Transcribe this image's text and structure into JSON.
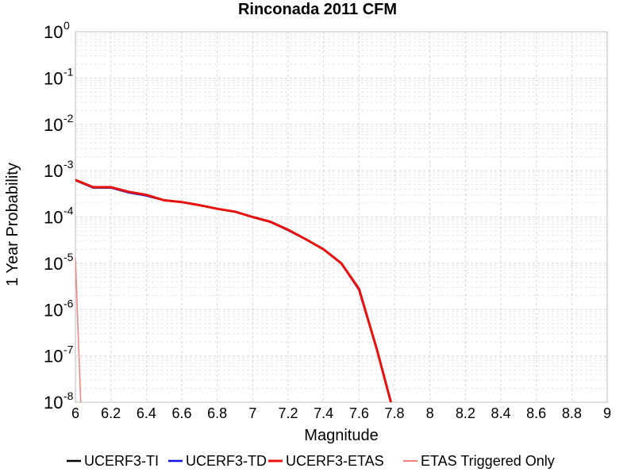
{
  "chart_data": {
    "type": "line",
    "title": "Rinconada 2011 CFM",
    "xlabel": "Magnitude",
    "ylabel": "1 Year Probability",
    "xlim": [
      6,
      9
    ],
    "ylim": [
      1e-08,
      1
    ],
    "yscale": "log",
    "grid": true,
    "legend_position": "bottom",
    "x_ticks": [
      "6",
      "6.2",
      "6.4",
      "6.6",
      "6.8",
      "7",
      "7.2",
      "7.4",
      "7.6",
      "7.8",
      "8",
      "8.2",
      "8.4",
      "8.6",
      "8.8",
      "9"
    ],
    "y_ticks": [
      {
        "base": "10",
        "exp": "0"
      },
      {
        "base": "10",
        "exp": "-1"
      },
      {
        "base": "10",
        "exp": "-2"
      },
      {
        "base": "10",
        "exp": "-3"
      },
      {
        "base": "10",
        "exp": "-4"
      },
      {
        "base": "10",
        "exp": "-5"
      },
      {
        "base": "10",
        "exp": "-6"
      },
      {
        "base": "10",
        "exp": "-7"
      },
      {
        "base": "10",
        "exp": "-8"
      }
    ],
    "series": [
      {
        "name": "UCERF3-TI",
        "color": "#000000",
        "width": 2.5,
        "x": [
          6.0,
          6.1,
          6.2,
          6.3,
          6.4,
          6.5,
          6.6,
          6.7,
          6.8,
          6.9,
          7.0,
          7.1,
          7.2,
          7.3,
          7.4,
          7.5,
          7.6,
          7.7,
          7.78
        ],
        "y": [
          0.00062,
          0.00043,
          0.00043,
          0.00034,
          0.00029,
          0.00023,
          0.00021,
          0.00018,
          0.00015,
          0.00013,
          0.0001,
          7.8e-05,
          5.2e-05,
          3.3e-05,
          2e-05,
          1e-05,
          2.7e-06,
          1.4e-07,
          1e-08
        ]
      },
      {
        "name": "UCERF3-TD",
        "color": "#1010e0",
        "width": 2.5,
        "x": [
          6.0,
          6.1,
          6.2,
          6.3,
          6.4,
          6.5,
          6.6,
          6.7,
          6.8,
          6.9,
          7.0,
          7.1,
          7.2,
          7.3,
          7.4,
          7.5,
          7.6,
          7.7,
          7.78
        ],
        "y": [
          0.00062,
          0.00043,
          0.00043,
          0.00034,
          0.00029,
          0.00023,
          0.00021,
          0.00018,
          0.00015,
          0.00013,
          0.0001,
          7.8e-05,
          5.2e-05,
          3.3e-05,
          2e-05,
          1e-05,
          2.7e-06,
          1.4e-07,
          1e-08
        ]
      },
      {
        "name": "UCERF3-ETAS",
        "color": "#e8120c",
        "width": 3,
        "x": [
          6.0,
          6.1,
          6.2,
          6.3,
          6.4,
          6.5,
          6.6,
          6.7,
          6.8,
          6.9,
          7.0,
          7.1,
          7.2,
          7.3,
          7.4,
          7.5,
          7.6,
          7.7,
          7.78
        ],
        "y": [
          0.00063,
          0.00044,
          0.00044,
          0.00035,
          0.0003,
          0.00023,
          0.00021,
          0.00018,
          0.00015,
          0.00013,
          0.0001,
          7.9e-05,
          5.3e-05,
          3.3e-05,
          2e-05,
          1e-05,
          2.8e-06,
          1.4e-07,
          1e-08
        ]
      },
      {
        "name": "ETAS Triggered Only",
        "color": "#f08080",
        "width": 1.5,
        "x": [
          6.0,
          6.03
        ],
        "y": [
          1.3e-05,
          1e-08
        ]
      }
    ]
  }
}
